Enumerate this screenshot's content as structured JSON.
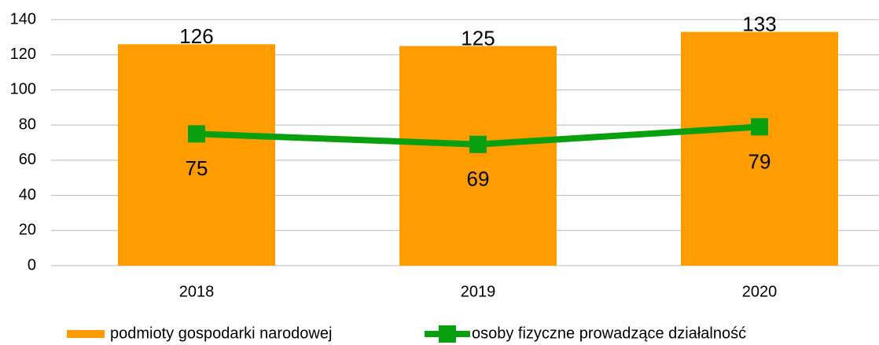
{
  "chart_data": {
    "type": "bar",
    "categories": [
      "2018",
      "2019",
      "2020"
    ],
    "series": [
      {
        "name": "podmioty gospodarki narodowej",
        "type": "bar",
        "color": "#ff9c00",
        "values": [
          126,
          125,
          133
        ]
      },
      {
        "name": "osoby fizyczne prowadzące działalność",
        "type": "line",
        "color": "#09a00f",
        "values": [
          75,
          69,
          79
        ]
      }
    ],
    "ylim": [
      0,
      140
    ],
    "yticks": [
      0,
      20,
      40,
      60,
      80,
      100,
      120,
      140
    ],
    "grid": true,
    "legend": "bottom"
  }
}
